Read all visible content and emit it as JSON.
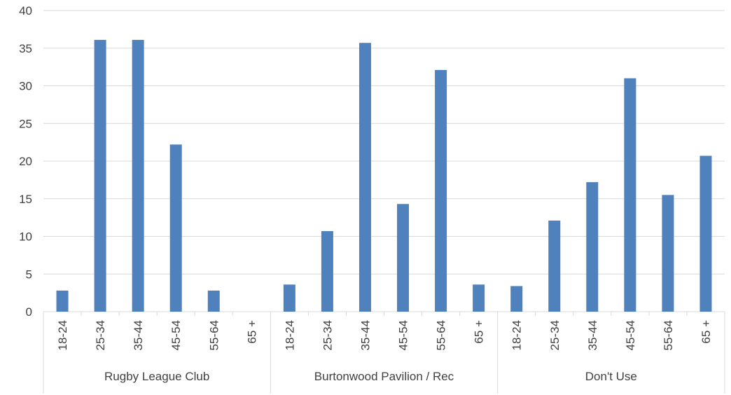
{
  "chart_data": {
    "type": "bar",
    "title": "",
    "xlabel": "",
    "ylabel": "",
    "ylim": [
      0,
      40
    ],
    "yticks": [
      0,
      5,
      10,
      15,
      20,
      25,
      30,
      35,
      40
    ],
    "grid": true,
    "legend": "none",
    "bar_color": "#4F81BD",
    "grid_color": "#D9D9D9",
    "groups": [
      {
        "name": "Rugby League  Club",
        "categories": [
          "18-24",
          "25-34",
          "35-44",
          "45-54",
          "55-64",
          "65 +"
        ],
        "values": [
          2.8,
          36.1,
          36.1,
          22.2,
          2.8,
          0
        ]
      },
      {
        "name": "Burtonwood Pavilion / Rec",
        "categories": [
          "18-24",
          "25-34",
          "35-44",
          "45-54",
          "55-64",
          "65 +"
        ],
        "values": [
          3.6,
          10.7,
          35.7,
          14.3,
          32.1,
          3.6
        ]
      },
      {
        "name": "Don't Use",
        "categories": [
          "18-24",
          "25-34",
          "35-44",
          "45-54",
          "55-64",
          "65 +"
        ],
        "values": [
          3.4,
          12.1,
          17.2,
          31.0,
          15.5,
          20.7
        ]
      }
    ]
  }
}
